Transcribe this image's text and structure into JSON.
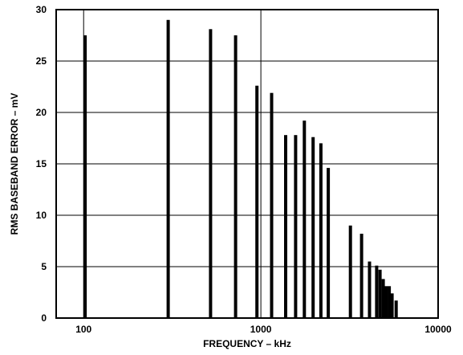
{
  "chart_data": {
    "type": "bar",
    "title": "",
    "xlabel": "FREQUENCY – kHz",
    "ylabel": "RMS BASEBAND ERROR – mV",
    "x_scale": "log",
    "xlim": [
      70,
      10000
    ],
    "ylim": [
      0,
      30
    ],
    "grid": true,
    "x_ticks": [
      100,
      1000,
      10000
    ],
    "x_tick_labels": [
      "100",
      "1000",
      "10000"
    ],
    "y_ticks": [
      0,
      5,
      10,
      15,
      20,
      25,
      30
    ],
    "y_tick_labels": [
      "0",
      "5",
      "10",
      "15",
      "20",
      "25",
      "30"
    ],
    "bar_color": "#000000",
    "x": [
      102,
      300,
      520,
      720,
      950,
      1150,
      1380,
      1570,
      1760,
      1970,
      2180,
      2400,
      3200,
      3700,
      4100,
      4500,
      4700,
      4900,
      5100,
      5300,
      5500,
      5800,
      6300
    ],
    "values": [
      27.5,
      29.0,
      28.1,
      27.5,
      22.6,
      21.9,
      17.8,
      17.8,
      19.2,
      17.6,
      17.0,
      14.6,
      9.0,
      8.2,
      5.5,
      5.1,
      4.7,
      3.8,
      3.1,
      3.1,
      2.4,
      1.7,
      0
    ]
  }
}
